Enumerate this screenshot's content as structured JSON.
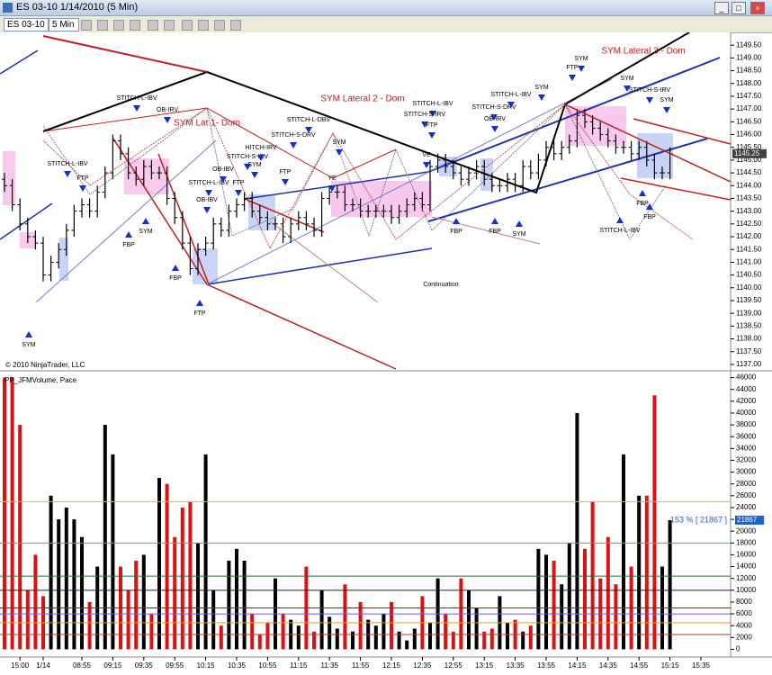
{
  "window": {
    "title": "ES 03-10  1/14/2010 (5 Min)",
    "instrument": "ES 03-10",
    "interval": "5 Min"
  },
  "chart_data": [
    {
      "type": "ohlc",
      "copyright": "© 2010 NinjaTrader, LLC",
      "open": [
        1144.25,
        1144.0,
        1143.25,
        1142.5,
        1142.0,
        1141.75,
        1140.5,
        1141.0,
        1141.5,
        1142.25,
        1143.0,
        1143.25,
        1143.0,
        1143.75,
        1144.5,
        1145.75,
        1145.25,
        1144.5,
        1144.25,
        1144.75,
        1144.5,
        1144.5,
        1143.5,
        1142.75,
        1141.75,
        1140.75,
        1141.5,
        1141.75,
        1142.5,
        1142.25,
        1143.0,
        1143.25,
        1143.5,
        1143.0,
        1142.75,
        1142.5,
        1142.5,
        1142.0,
        1142.5,
        1142.75,
        1142.5,
        1142.25,
        1143.5,
        1143.75,
        1143.75,
        1143.25,
        1143.25,
        1143.0,
        1143.0,
        1143.0,
        1143.0,
        1142.75,
        1143.0,
        1143.25,
        1143.5,
        1143.25,
        1144.75,
        1145.0,
        1144.75,
        1144.5,
        1144.25,
        1144.5,
        1144.75,
        1144.25,
        1144.0,
        1144.0,
        1144.25,
        1144.0,
        1144.75,
        1144.5,
        1145.0,
        1145.5,
        1145.25,
        1145.5,
        1145.75,
        1146.75,
        1146.5,
        1146.25,
        1146.0,
        1145.75,
        1145.5,
        1145.5,
        1145.25,
        1145.5,
        1145.0,
        1144.5,
        1144.5,
        null,
        null,
        null,
        null
      ],
      "high": [
        1144.5,
        1144.25,
        1143.5,
        1142.75,
        1142.25,
        1142.0,
        1141.25,
        1141.75,
        1142.5,
        1143.25,
        1143.5,
        1143.5,
        1144.0,
        1144.75,
        1146.0,
        1146.0,
        1145.5,
        1144.75,
        1145.0,
        1145.0,
        1144.75,
        1144.75,
        1143.75,
        1143.0,
        1142.0,
        1141.75,
        1142.0,
        1142.75,
        1142.75,
        1143.25,
        1143.5,
        1143.75,
        1143.75,
        1143.25,
        1143.0,
        1142.75,
        1142.75,
        1142.75,
        1143.0,
        1143.0,
        1142.75,
        1143.75,
        1144.0,
        1144.0,
        1144.0,
        1143.5,
        1143.5,
        1143.25,
        1143.25,
        1143.25,
        1143.25,
        1143.25,
        1143.5,
        1143.75,
        1143.75,
        1145.0,
        1145.25,
        1145.25,
        1145.0,
        1144.75,
        1144.75,
        1145.0,
        1145.0,
        1144.5,
        1144.25,
        1144.5,
        1144.5,
        1145.0,
        1145.0,
        1145.25,
        1145.75,
        1145.75,
        1145.75,
        1146.0,
        1147.0,
        1147.0,
        1146.75,
        1146.5,
        1146.25,
        1146.0,
        1145.75,
        1145.75,
        1145.75,
        1145.75,
        1145.25,
        1144.75,
        1145.5,
        null,
        null,
        null,
        null
      ],
      "low": [
        1143.75,
        1143.0,
        1142.25,
        1141.75,
        1141.5,
        1140.25,
        1140.25,
        1140.75,
        1141.25,
        1142.0,
        1142.75,
        1142.75,
        1142.75,
        1143.5,
        1144.25,
        1145.0,
        1144.25,
        1144.0,
        1144.0,
        1144.25,
        1144.25,
        1143.25,
        1142.5,
        1141.5,
        1140.5,
        1140.5,
        1141.25,
        1141.5,
        1142.0,
        1142.0,
        1142.75,
        1143.0,
        1142.75,
        1142.5,
        1142.25,
        1142.25,
        1141.75,
        1141.75,
        1142.25,
        1142.25,
        1142.0,
        1142.0,
        1143.25,
        1143.5,
        1143.0,
        1143.0,
        1142.75,
        1142.75,
        1142.75,
        1142.75,
        1142.5,
        1142.5,
        1142.75,
        1143.0,
        1143.0,
        1143.0,
        1144.5,
        1144.5,
        1144.25,
        1144.0,
        1144.0,
        1144.25,
        1144.0,
        1143.75,
        1143.75,
        1143.75,
        1143.75,
        1143.75,
        1144.25,
        1144.25,
        1144.75,
        1145.0,
        1145.0,
        1145.25,
        1145.5,
        1146.25,
        1146.0,
        1145.75,
        1145.5,
        1145.25,
        1145.25,
        1145.0,
        1145.0,
        1144.75,
        1144.25,
        1144.25,
        1144.25,
        null,
        null,
        null,
        null
      ],
      "close": [
        1144.0,
        1143.25,
        1142.5,
        1142.0,
        1141.75,
        1140.5,
        1141.0,
        1141.5,
        1142.25,
        1143.0,
        1143.25,
        1143.0,
        1143.75,
        1144.5,
        1145.75,
        1145.25,
        1144.5,
        1144.25,
        1144.75,
        1144.5,
        1144.5,
        1143.5,
        1142.75,
        1141.75,
        1140.75,
        1141.5,
        1141.75,
        1142.5,
        1142.25,
        1143.0,
        1143.25,
        1143.5,
        1143.0,
        1142.75,
        1142.5,
        1142.5,
        1142.0,
        1142.5,
        1142.75,
        1142.5,
        1142.25,
        1143.5,
        1143.75,
        1143.75,
        1143.25,
        1143.25,
        1143.0,
        1143.0,
        1143.0,
        1143.0,
        1142.75,
        1143.0,
        1143.25,
        1143.5,
        1143.25,
        1144.75,
        1145.0,
        1144.75,
        1144.5,
        1144.25,
        1144.5,
        1144.75,
        1144.25,
        1144.0,
        1144.0,
        1144.25,
        1144.0,
        1144.75,
        1144.5,
        1145.0,
        1145.5,
        1145.25,
        1145.5,
        1145.75,
        1146.75,
        1146.5,
        1146.25,
        1146.0,
        1145.75,
        1145.5,
        1145.5,
        1145.25,
        1145.5,
        1145.0,
        1144.5,
        1144.5,
        1145.25,
        null,
        null,
        null,
        null
      ],
      "ylim": [
        1136.75,
        1150.0
      ],
      "yticks": [
        {
          "value": 1137.0,
          "label": "1137.00"
        },
        {
          "value": 1137.5,
          "label": "1137.50"
        },
        {
          "value": 1138.0,
          "label": "1138.00"
        },
        {
          "value": 1138.5,
          "label": "1138.50"
        },
        {
          "value": 1139.0,
          "label": "1139.00"
        },
        {
          "value": 1139.5,
          "label": "1139.50"
        },
        {
          "value": 1140.0,
          "label": "1140.00"
        },
        {
          "value": 1140.5,
          "label": "1140.50"
        },
        {
          "value": 1141.0,
          "label": "1141.00"
        },
        {
          "value": 1141.5,
          "label": "1141.50"
        },
        {
          "value": 1142.0,
          "label": "1142.00"
        },
        {
          "value": 1142.5,
          "label": "1142.50"
        },
        {
          "value": 1143.0,
          "label": "1143.00"
        },
        {
          "value": 1143.5,
          "label": "1143.50"
        },
        {
          "value": 1144.0,
          "label": "1144.00"
        },
        {
          "value": 1144.5,
          "label": "1144.50"
        },
        {
          "value": 1145.0,
          "label": "1145.00"
        },
        {
          "value": 1145.5,
          "label": "1145.50"
        },
        {
          "value": 1146.0,
          "label": "1146.00"
        },
        {
          "value": 1146.5,
          "label": "1146.50"
        },
        {
          "value": 1147.0,
          "label": "1147.00"
        },
        {
          "value": 1147.5,
          "label": "1147.50"
        },
        {
          "value": 1148.0,
          "label": "1148.00"
        },
        {
          "value": 1148.5,
          "label": "1148.50"
        },
        {
          "value": 1149.0,
          "label": "1149.00"
        },
        {
          "value": 1149.5,
          "label": "1149.50"
        }
      ],
      "bar_color": "#000000",
      "annotation_color": "#000000",
      "headline_color": "#c02020",
      "arrow_color": "#1030d0",
      "annotations": [
        "SYM",
        "STITCH-L-IBV",
        "FTP",
        "FBP",
        "SYM",
        "STITCH-L-IBV",
        "OB-IRV",
        "FBP",
        "FTP",
        "OB-IBV",
        "STITCH-L-IBV",
        "OB-IBV",
        "FTP",
        "STITCH-S-IRV",
        "SYM",
        "HITCH-IRV",
        "STITCH-S-DRV",
        "FTP",
        "STITCH-L-DBV",
        "SYM",
        "YE",
        "STITCH-L-IBV",
        "STITCH-S-IRV",
        "FTP",
        "VE",
        "FBP",
        "STITCH-S-DRV",
        "OB-IRV",
        "STITCH-L-IBV",
        "SYM",
        "FBP",
        "SYM",
        "Continuation",
        "SYM",
        "FTP",
        "SYM",
        "STITCH-S-IRV",
        "SYM",
        "FBP",
        "FBP",
        "STITCH-L-IBV"
      ],
      "headlines": [
        "SYM Lat 1- Dom",
        "SYM Lateral 2 - Dom",
        "SYM Lateral 3 - Dom"
      ]
    },
    {
      "type": "bar",
      "title": "PP_JFMVolume, Pace",
      "categories": [
        null,
        null,
        "15:00",
        null,
        null,
        "1/14",
        null,
        null,
        null,
        null,
        "08:55",
        null,
        null,
        null,
        "09:15",
        null,
        null,
        null,
        "09:35",
        null,
        null,
        null,
        "09:55",
        null,
        null,
        null,
        "10:15",
        null,
        null,
        null,
        "10:35",
        null,
        null,
        null,
        "10:55",
        null,
        null,
        null,
        "11:15",
        null,
        null,
        null,
        "11:35",
        null,
        null,
        null,
        "11:55",
        null,
        null,
        null,
        "12:15",
        null,
        null,
        null,
        "12:35",
        null,
        null,
        null,
        "12:55",
        null,
        null,
        null,
        "13:15",
        null,
        null,
        null,
        "13:35",
        null,
        null,
        null,
        "13:55",
        null,
        null,
        null,
        "14:15",
        null,
        null,
        null,
        "14:35",
        null,
        null,
        null,
        "14:55",
        null,
        null,
        null,
        "15:15",
        null,
        null,
        null,
        "15:35"
      ],
      "values": [
        46000,
        46000,
        38000,
        10000,
        16000,
        9000,
        26000,
        22000,
        24000,
        22000,
        19000,
        8000,
        14000,
        38000,
        33000,
        14000,
        10000,
        15000,
        16000,
        6000,
        29000,
        28000,
        19000,
        24000,
        25000,
        18000,
        33000,
        10000,
        4000,
        15000,
        17000,
        15000,
        6000,
        2500,
        4500,
        12000,
        6000,
        5000,
        4000,
        14000,
        3000,
        10000,
        5500,
        3500,
        11000,
        3000,
        8000,
        5000,
        4000,
        6000,
        8000,
        3000,
        1500,
        3500,
        9000,
        4500,
        12000,
        6000,
        3000,
        12000,
        10000,
        7000,
        3000,
        3500,
        9000,
        4500,
        5000,
        3000,
        4000,
        17000,
        16000,
        15000,
        11000,
        18000,
        40000,
        17000,
        25000,
        12000,
        19000,
        11000,
        33000,
        14000,
        26000,
        26000,
        43000,
        14000,
        21867,
        null,
        null,
        null,
        null
      ],
      "ylim": [
        -1000,
        47000
      ],
      "yticks": [
        0,
        2000,
        4000,
        6000,
        8000,
        10000,
        12000,
        14000,
        16000,
        18000,
        20000,
        22000,
        24000,
        26000,
        28000,
        30000,
        32000,
        34000,
        36000,
        38000,
        40000,
        42000,
        44000,
        46000
      ],
      "up_color": "#000000",
      "down_color": "#dd1111",
      "reference_lines": [
        {
          "value": 25000,
          "color": "#e8c000"
        },
        {
          "value": 18000,
          "color": "#40c040"
        },
        {
          "value": 12400,
          "color": "#2e6b2e"
        },
        {
          "value": 10000,
          "color": "#222222"
        },
        {
          "value": 7000,
          "color": "#3030c0"
        },
        {
          "value": 6000,
          "color": "#6060ff"
        },
        {
          "value": 4500,
          "color": "#f0a000"
        },
        {
          "value": 2500,
          "color": "#a04040"
        }
      ],
      "pace_label": "153 % [ 21867 ]"
    }
  ]
}
